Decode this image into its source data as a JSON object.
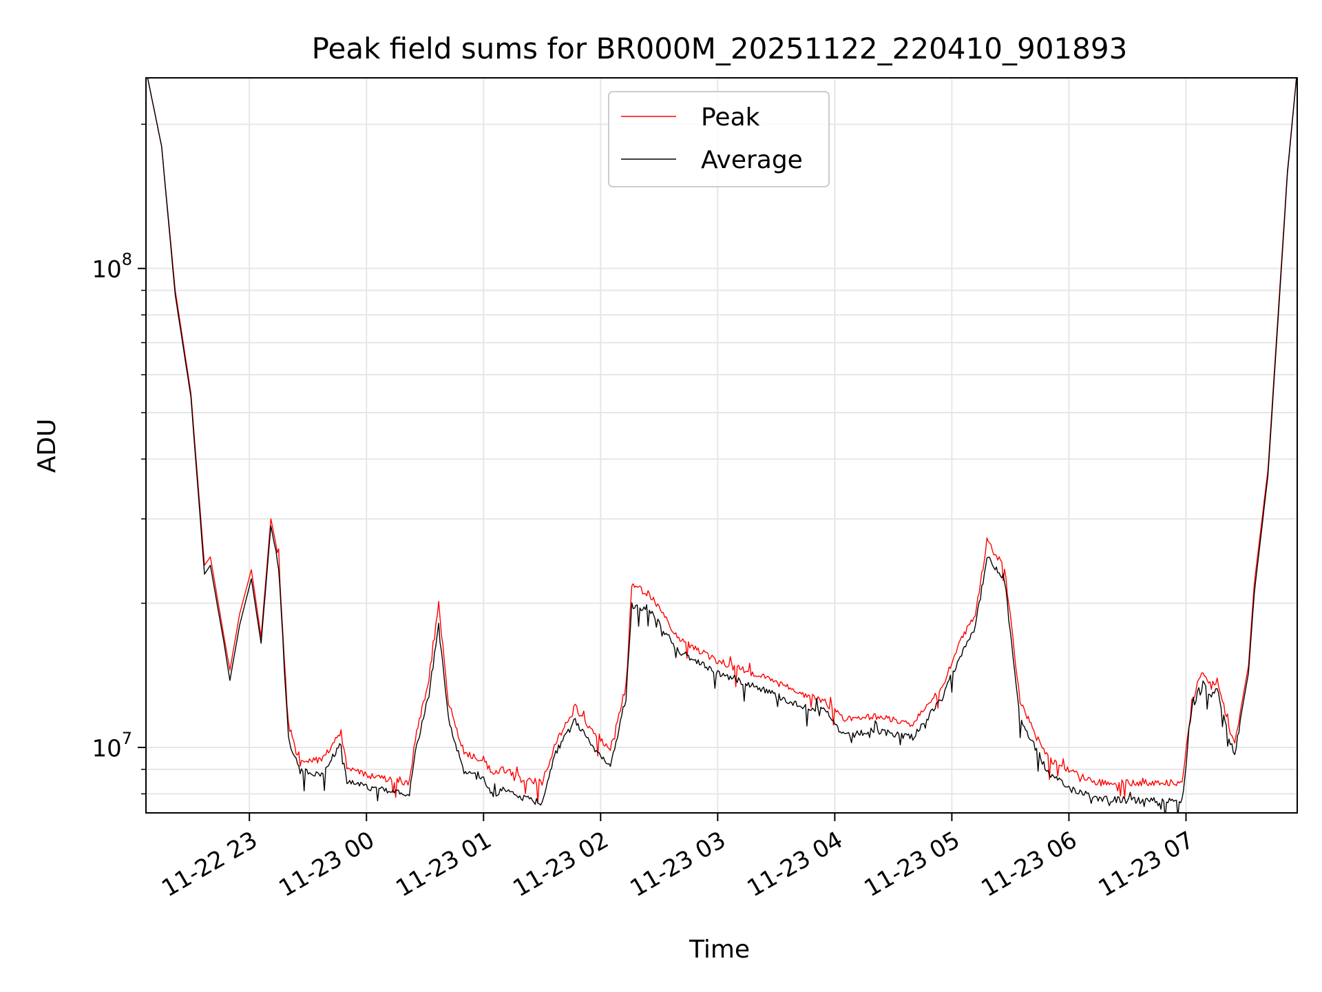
{
  "chart_data": {
    "type": "line",
    "title": "Peak field sums for BR000M_20251122_220410_901893",
    "xlabel": "Time",
    "ylabel": "ADU",
    "yscale": "log",
    "ylim": [
      7300000,
      250000000
    ],
    "xlim": [
      "2025-11-22 22:07",
      "2025-11-23 07:57"
    ],
    "grid": true,
    "legend_position": "top-center",
    "x_ticks": [
      {
        "time": "2025-11-22 23:00",
        "label": "11-22 23"
      },
      {
        "time": "2025-11-23 00:00",
        "label": "11-23 00"
      },
      {
        "time": "2025-11-23 01:00",
        "label": "11-23 01"
      },
      {
        "time": "2025-11-23 02:00",
        "label": "11-23 02"
      },
      {
        "time": "2025-11-23 03:00",
        "label": "11-23 03"
      },
      {
        "time": "2025-11-23 04:00",
        "label": "11-23 04"
      },
      {
        "time": "2025-11-23 05:00",
        "label": "11-23 05"
      },
      {
        "time": "2025-11-23 06:00",
        "label": "11-23 06"
      },
      {
        "time": "2025-11-23 07:00",
        "label": "11-23 07"
      }
    ],
    "y_ticks": [
      {
        "value": 10000000,
        "base": "10",
        "exp": "7"
      },
      {
        "value": 100000000,
        "base": "10",
        "exp": "8"
      }
    ],
    "series": [
      {
        "name": "Peak",
        "color": "#ff0000",
        "points": [
          [
            "2025-11-22 22:07",
            260000000
          ],
          [
            "2025-11-22 22:15",
            180000000
          ],
          [
            "2025-11-22 22:22",
            90000000
          ],
          [
            "2025-11-22 22:30",
            55000000
          ],
          [
            "2025-11-22 22:37",
            24000000
          ],
          [
            "2025-11-22 22:40",
            25000000
          ],
          [
            "2025-11-22 22:47",
            17000000
          ],
          [
            "2025-11-22 22:50",
            14500000
          ],
          [
            "2025-11-22 22:55",
            19000000
          ],
          [
            "2025-11-22 23:01",
            23500000
          ],
          [
            "2025-11-22 23:06",
            17000000
          ],
          [
            "2025-11-22 23:11",
            30000000
          ],
          [
            "2025-11-22 23:15",
            25000000
          ],
          [
            "2025-11-22 23:20",
            11000000
          ],
          [
            "2025-11-22 23:26",
            9300000
          ],
          [
            "2025-11-22 23:37",
            9500000
          ],
          [
            "2025-11-22 23:47",
            10800000
          ],
          [
            "2025-11-22 23:50",
            9200000
          ],
          [
            "2025-11-23 00:00",
            8800000
          ],
          [
            "2025-11-23 00:15",
            8600000
          ],
          [
            "2025-11-23 00:22",
            8500000
          ],
          [
            "2025-11-23 00:25",
            10500000
          ],
          [
            "2025-11-23 00:32",
            14000000
          ],
          [
            "2025-11-23 00:37",
            20000000
          ],
          [
            "2025-11-23 00:42",
            12500000
          ],
          [
            "2025-11-23 00:50",
            9800000
          ],
          [
            "2025-11-23 01:00",
            9500000
          ],
          [
            "2025-11-23 01:05",
            8800000
          ],
          [
            "2025-11-23 01:10",
            9100000
          ],
          [
            "2025-11-23 01:20",
            8600000
          ],
          [
            "2025-11-23 01:30",
            8500000
          ],
          [
            "2025-11-23 01:37",
            10300000
          ],
          [
            "2025-11-23 01:47",
            12200000
          ],
          [
            "2025-11-23 01:55",
            11000000
          ],
          [
            "2025-11-23 02:05",
            10000000
          ],
          [
            "2025-11-23 02:13",
            13500000
          ],
          [
            "2025-11-23 02:16",
            22000000
          ],
          [
            "2025-11-23 02:25",
            21000000
          ],
          [
            "2025-11-23 02:40",
            17000000
          ],
          [
            "2025-11-23 03:00",
            15200000
          ],
          [
            "2025-11-23 03:20",
            14300000
          ],
          [
            "2025-11-23 03:40",
            13200000
          ],
          [
            "2025-11-23 03:55",
            12500000
          ],
          [
            "2025-11-23 04:05",
            11500000
          ],
          [
            "2025-11-23 04:20",
            11700000
          ],
          [
            "2025-11-23 04:40",
            11300000
          ],
          [
            "2025-11-23 04:55",
            13500000
          ],
          [
            "2025-11-23 05:05",
            17000000
          ],
          [
            "2025-11-23 05:12",
            19000000
          ],
          [
            "2025-11-23 05:18",
            27000000
          ],
          [
            "2025-11-23 05:27",
            24000000
          ],
          [
            "2025-11-23 05:35",
            12500000
          ],
          [
            "2025-11-23 05:42",
            11000000
          ],
          [
            "2025-11-23 05:50",
            9500000
          ],
          [
            "2025-11-23 06:00",
            9000000
          ],
          [
            "2025-11-23 06:15",
            8500000
          ],
          [
            "2025-11-23 06:30",
            8500000
          ],
          [
            "2025-11-23 06:45",
            8500000
          ],
          [
            "2025-11-23 06:58",
            8500000
          ],
          [
            "2025-11-23 07:03",
            12500000
          ],
          [
            "2025-11-23 07:08",
            14500000
          ],
          [
            "2025-11-23 07:13",
            13500000
          ],
          [
            "2025-11-23 07:16",
            14000000
          ],
          [
            "2025-11-23 07:22",
            11000000
          ],
          [
            "2025-11-23 07:25",
            10200000
          ],
          [
            "2025-11-23 07:32",
            14800000
          ],
          [
            "2025-11-23 07:35",
            22000000
          ],
          [
            "2025-11-23 07:42",
            38000000
          ],
          [
            "2025-11-23 07:48",
            90000000
          ],
          [
            "2025-11-23 07:52",
            160000000
          ],
          [
            "2025-11-23 07:57",
            260000000
          ]
        ]
      },
      {
        "name": "Average",
        "color": "#000000",
        "points": [
          [
            "2025-11-22 22:07",
            260000000
          ],
          [
            "2025-11-22 22:15",
            180000000
          ],
          [
            "2025-11-22 22:22",
            88000000
          ],
          [
            "2025-11-22 22:30",
            54000000
          ],
          [
            "2025-11-22 22:37",
            23000000
          ],
          [
            "2025-11-22 22:40",
            24000000
          ],
          [
            "2025-11-22 22:47",
            16500000
          ],
          [
            "2025-11-22 22:50",
            13800000
          ],
          [
            "2025-11-22 22:55",
            18000000
          ],
          [
            "2025-11-22 23:01",
            22500000
          ],
          [
            "2025-11-22 23:06",
            16500000
          ],
          [
            "2025-11-22 23:11",
            29000000
          ],
          [
            "2025-11-22 23:15",
            24000000
          ],
          [
            "2025-11-22 23:20",
            10500000
          ],
          [
            "2025-11-22 23:26",
            9000000
          ],
          [
            "2025-11-22 23:37",
            8800000
          ],
          [
            "2025-11-22 23:47",
            10300000
          ],
          [
            "2025-11-22 23:50",
            8600000
          ],
          [
            "2025-11-23 00:00",
            8300000
          ],
          [
            "2025-11-23 00:15",
            8100000
          ],
          [
            "2025-11-23 00:22",
            8000000
          ],
          [
            "2025-11-23 00:25",
            9800000
          ],
          [
            "2025-11-23 00:32",
            13000000
          ],
          [
            "2025-11-23 00:37",
            18000000
          ],
          [
            "2025-11-23 00:42",
            11500000
          ],
          [
            "2025-11-23 00:50",
            9000000
          ],
          [
            "2025-11-23 01:00",
            8600000
          ],
          [
            "2025-11-23 01:05",
            8000000
          ],
          [
            "2025-11-23 01:10",
            8300000
          ],
          [
            "2025-11-23 01:20",
            7900000
          ],
          [
            "2025-11-23 01:30",
            7700000
          ],
          [
            "2025-11-23 01:37",
            9800000
          ],
          [
            "2025-11-23 01:47",
            11500000
          ],
          [
            "2025-11-23 01:55",
            10200000
          ],
          [
            "2025-11-23 02:05",
            9200000
          ],
          [
            "2025-11-23 02:13",
            12800000
          ],
          [
            "2025-11-23 02:16",
            20000000
          ],
          [
            "2025-11-23 02:25",
            19500000
          ],
          [
            "2025-11-23 02:40",
            16000000
          ],
          [
            "2025-11-23 03:00",
            14400000
          ],
          [
            "2025-11-23 03:20",
            13500000
          ],
          [
            "2025-11-23 03:40",
            12400000
          ],
          [
            "2025-11-23 03:55",
            12000000
          ],
          [
            "2025-11-23 04:05",
            10600000
          ],
          [
            "2025-11-23 04:20",
            10900000
          ],
          [
            "2025-11-23 04:40",
            10600000
          ],
          [
            "2025-11-23 04:55",
            12700000
          ],
          [
            "2025-11-23 05:05",
            16000000
          ],
          [
            "2025-11-23 05:12",
            18000000
          ],
          [
            "2025-11-23 05:18",
            25000000
          ],
          [
            "2025-11-23 05:27",
            22500000
          ],
          [
            "2025-11-23 05:35",
            11500000
          ],
          [
            "2025-11-23 05:42",
            10200000
          ],
          [
            "2025-11-23 05:50",
            8800000
          ],
          [
            "2025-11-23 06:00",
            8300000
          ],
          [
            "2025-11-23 06:15",
            7900000
          ],
          [
            "2025-11-23 06:30",
            7800000
          ],
          [
            "2025-11-23 06:45",
            7800000
          ],
          [
            "2025-11-23 06:58",
            7800000
          ],
          [
            "2025-11-23 07:03",
            12000000
          ],
          [
            "2025-11-23 07:08",
            13800000
          ],
          [
            "2025-11-23 07:13",
            12800000
          ],
          [
            "2025-11-23 07:16",
            13300000
          ],
          [
            "2025-11-23 07:22",
            10500000
          ],
          [
            "2025-11-23 07:25",
            9800000
          ],
          [
            "2025-11-23 07:32",
            14300000
          ],
          [
            "2025-11-23 07:35",
            21000000
          ],
          [
            "2025-11-23 07:42",
            37000000
          ],
          [
            "2025-11-23 07:48",
            88000000
          ],
          [
            "2025-11-23 07:52",
            158000000
          ],
          [
            "2025-11-23 07:57",
            260000000
          ]
        ]
      }
    ]
  }
}
